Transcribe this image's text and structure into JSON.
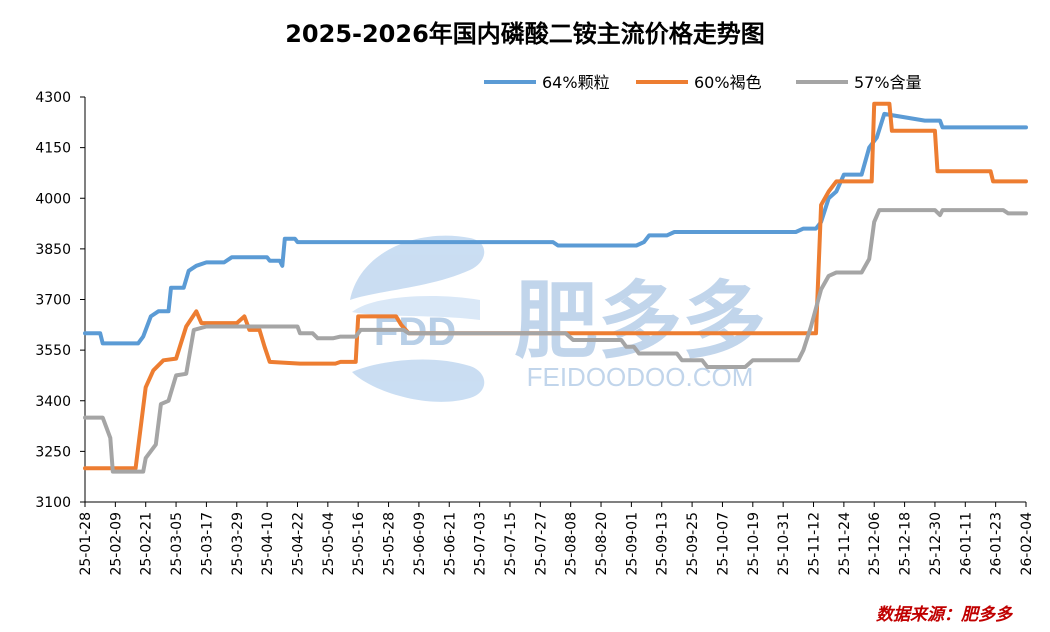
{
  "chart_data": {
    "type": "line",
    "title": "2025-2026年国内磷酸二铵主流价格走势图",
    "xlabel": "",
    "ylabel": "",
    "ylim": [
      3100,
      4300
    ],
    "yticks": [
      3100,
      3250,
      3400,
      3550,
      3700,
      3850,
      4000,
      4150,
      4300
    ],
    "xrange": [
      "2025-01-28",
      "2026-02-04"
    ],
    "xticks": [
      "25-01-28",
      "25-02-09",
      "25-02-21",
      "25-03-05",
      "25-03-17",
      "25-03-29",
      "25-04-10",
      "25-04-22",
      "25-05-04",
      "25-05-16",
      "25-05-28",
      "25-06-09",
      "25-06-21",
      "25-07-03",
      "25-07-15",
      "25-07-27",
      "25-08-08",
      "25-08-20",
      "25-09-01",
      "25-09-13",
      "25-09-25",
      "25-10-07",
      "25-10-19",
      "25-10-31",
      "25-11-12",
      "25-11-24",
      "25-12-06",
      "25-12-18",
      "25-12-30",
      "26-01-11",
      "26-01-23",
      "26-02-04"
    ],
    "grid": false,
    "legend_position": "top-right",
    "series": [
      {
        "name": "64%颗粒",
        "color": "#5b9bd5",
        "points": [
          [
            "2025-01-28",
            3600
          ],
          [
            "2025-02-03",
            3600
          ],
          [
            "2025-02-04",
            3570
          ],
          [
            "2025-02-18",
            3570
          ],
          [
            "2025-02-20",
            3590
          ],
          [
            "2025-02-23",
            3650
          ],
          [
            "2025-02-26",
            3665
          ],
          [
            "2025-03-02",
            3665
          ],
          [
            "2025-03-03",
            3735
          ],
          [
            "2025-03-08",
            3735
          ],
          [
            "2025-03-10",
            3785
          ],
          [
            "2025-03-13",
            3800
          ],
          [
            "2025-03-17",
            3810
          ],
          [
            "2025-03-24",
            3810
          ],
          [
            "2025-03-27",
            3825
          ],
          [
            "2025-04-10",
            3825
          ],
          [
            "2025-04-11",
            3815
          ],
          [
            "2025-04-15",
            3815
          ],
          [
            "2025-04-16",
            3800
          ],
          [
            "2025-04-17",
            3880
          ],
          [
            "2025-04-21",
            3880
          ],
          [
            "2025-04-22",
            3870
          ],
          [
            "2025-08-01",
            3870
          ],
          [
            "2025-08-03",
            3860
          ],
          [
            "2025-09-03",
            3860
          ],
          [
            "2025-09-06",
            3870
          ],
          [
            "2025-09-08",
            3890
          ],
          [
            "2025-09-15",
            3890
          ],
          [
            "2025-09-18",
            3900
          ],
          [
            "2025-11-05",
            3900
          ],
          [
            "2025-11-08",
            3910
          ],
          [
            "2025-11-13",
            3910
          ],
          [
            "2025-11-15",
            3930
          ],
          [
            "2025-11-18",
            4000
          ],
          [
            "2025-11-21",
            4020
          ],
          [
            "2025-11-24",
            4070
          ],
          [
            "2025-12-01",
            4070
          ],
          [
            "2025-12-04",
            4150
          ],
          [
            "2025-12-07",
            4180
          ],
          [
            "2025-12-10",
            4250
          ],
          [
            "2025-12-26",
            4230
          ],
          [
            "2026-01-01",
            4230
          ],
          [
            "2026-01-02",
            4210
          ],
          [
            "2026-02-04",
            4210
          ]
        ]
      },
      {
        "name": "60%褐色",
        "color": "#ed7d31",
        "points": [
          [
            "2025-01-28",
            3200
          ],
          [
            "2025-02-17",
            3200
          ],
          [
            "2025-02-18",
            3260
          ],
          [
            "2025-02-21",
            3440
          ],
          [
            "2025-02-24",
            3490
          ],
          [
            "2025-02-28",
            3520
          ],
          [
            "2025-03-05",
            3525
          ],
          [
            "2025-03-09",
            3620
          ],
          [
            "2025-03-13",
            3665
          ],
          [
            "2025-03-15",
            3630
          ],
          [
            "2025-03-29",
            3630
          ],
          [
            "2025-04-01",
            3650
          ],
          [
            "2025-04-03",
            3610
          ],
          [
            "2025-04-07",
            3610
          ],
          [
            "2025-04-09",
            3560
          ],
          [
            "2025-04-11",
            3515
          ],
          [
            "2025-04-23",
            3510
          ],
          [
            "2025-05-07",
            3510
          ],
          [
            "2025-05-09",
            3515
          ],
          [
            "2025-05-15",
            3515
          ],
          [
            "2025-05-16",
            3650
          ],
          [
            "2025-05-31",
            3650
          ],
          [
            "2025-06-02",
            3625
          ],
          [
            "2025-06-05",
            3600
          ],
          [
            "2025-11-13",
            3600
          ],
          [
            "2025-11-15",
            3980
          ],
          [
            "2025-11-18",
            4020
          ],
          [
            "2025-11-21",
            4050
          ],
          [
            "2025-12-05",
            4050
          ],
          [
            "2025-12-06",
            4280
          ],
          [
            "2025-12-12",
            4280
          ],
          [
            "2025-12-13",
            4200
          ],
          [
            "2025-12-30",
            4200
          ],
          [
            "2025-12-31",
            4080
          ],
          [
            "2026-01-21",
            4080
          ],
          [
            "2026-01-22",
            4050
          ],
          [
            "2026-02-04",
            4050
          ]
        ]
      },
      {
        "name": "57%含量",
        "color": "#a5a5a5",
        "points": [
          [
            "2025-01-28",
            3350
          ],
          [
            "2025-02-04",
            3350
          ],
          [
            "2025-02-07",
            3290
          ],
          [
            "2025-02-08",
            3190
          ],
          [
            "2025-02-20",
            3190
          ],
          [
            "2025-02-21",
            3230
          ],
          [
            "2025-02-25",
            3270
          ],
          [
            "2025-02-27",
            3390
          ],
          [
            "2025-03-02",
            3400
          ],
          [
            "2025-03-05",
            3475
          ],
          [
            "2025-03-09",
            3480
          ],
          [
            "2025-03-12",
            3610
          ],
          [
            "2025-03-17",
            3620
          ],
          [
            "2025-04-22",
            3620
          ],
          [
            "2025-04-23",
            3600
          ],
          [
            "2025-04-28",
            3600
          ],
          [
            "2025-04-30",
            3585
          ],
          [
            "2025-05-06",
            3585
          ],
          [
            "2025-05-09",
            3590
          ],
          [
            "2025-05-15",
            3590
          ],
          [
            "2025-05-17",
            3610
          ],
          [
            "2025-06-03",
            3610
          ],
          [
            "2025-06-05",
            3600
          ],
          [
            "2025-08-06",
            3600
          ],
          [
            "2025-08-09",
            3580
          ],
          [
            "2025-08-28",
            3580
          ],
          [
            "2025-08-30",
            3560
          ],
          [
            "2025-09-02",
            3560
          ],
          [
            "2025-09-04",
            3540
          ],
          [
            "2025-09-19",
            3540
          ],
          [
            "2025-09-21",
            3520
          ],
          [
            "2025-09-29",
            3520
          ],
          [
            "2025-10-01",
            3500
          ],
          [
            "2025-10-16",
            3500
          ],
          [
            "2025-10-19",
            3520
          ],
          [
            "2025-11-06",
            3520
          ],
          [
            "2025-11-08",
            3550
          ],
          [
            "2025-11-11",
            3620
          ],
          [
            "2025-11-15",
            3730
          ],
          [
            "2025-11-18",
            3770
          ],
          [
            "2025-11-21",
            3780
          ],
          [
            "2025-12-01",
            3780
          ],
          [
            "2025-12-04",
            3820
          ],
          [
            "2025-12-06",
            3930
          ],
          [
            "2025-12-08",
            3965
          ],
          [
            "2025-12-30",
            3965
          ],
          [
            "2026-01-01",
            3950
          ],
          [
            "2026-01-02",
            3965
          ],
          [
            "2026-01-26",
            3965
          ],
          [
            "2026-01-28",
            3955
          ],
          [
            "2026-02-04",
            3955
          ]
        ]
      }
    ]
  },
  "watermark": {
    "logo_text": "FDD",
    "brand": "肥多多",
    "url": "FEIDOODOO.COM"
  },
  "source": "数据来源：肥多多"
}
